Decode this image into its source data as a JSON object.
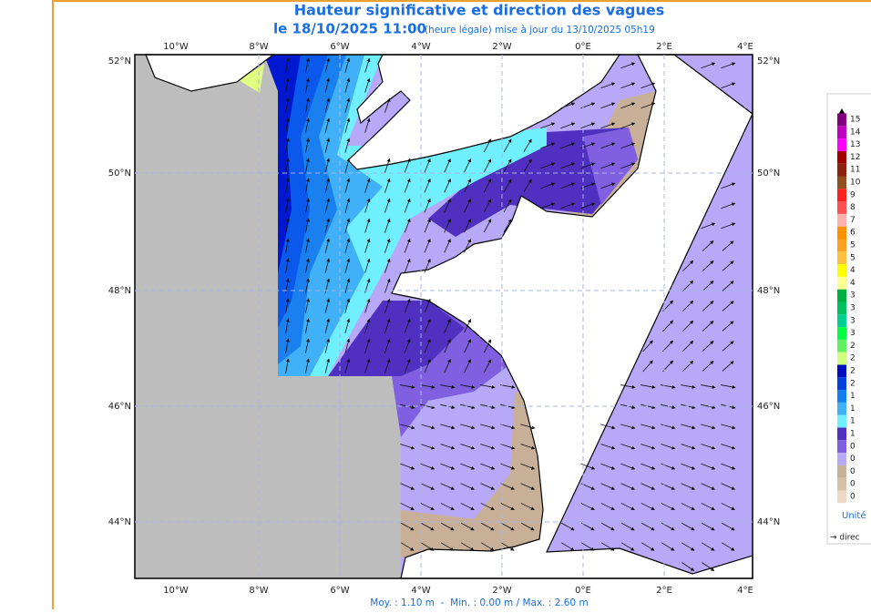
{
  "header": {
    "title": "Hauteur significative et direction des vagues",
    "date": "le 18/10/2025 11:00",
    "update": "(heure légale) mise à jour du 13/10/2025 05h19"
  },
  "map": {
    "lon_labels_top": [
      "10°W",
      "8°W",
      "6°W",
      "4°W",
      "2°W",
      "0°E",
      "2°E",
      "4°E"
    ],
    "lon_labels_bottom": [
      "10°W",
      "8°W",
      "6°W",
      "4°W",
      "2°W",
      "0°E",
      "2°E",
      "4°E"
    ],
    "lat_labels_left": [
      "52°N",
      "50°N",
      "48°N",
      "46°N",
      "44°N"
    ],
    "lat_labels_right": [
      "52°N",
      "50°N",
      "48°N",
      "46°N",
      "44°N"
    ]
  },
  "legend": {
    "labels": [
      "15",
      "14",
      "13",
      "12",
      "11",
      "10",
      "9",
      "8",
      "7",
      "6",
      "5",
      "5",
      "4",
      "4",
      "3",
      "3",
      "3",
      "3",
      "2",
      "2",
      "2",
      "2",
      "1",
      "1",
      "1",
      "1",
      "0",
      "0",
      "0",
      "0",
      "0"
    ],
    "unit": "Unité",
    "direction": "→ direc"
  },
  "footer": "Moy. : 1.10 m  -  Min. : 0.00 m / Max. : 2.60 m"
}
